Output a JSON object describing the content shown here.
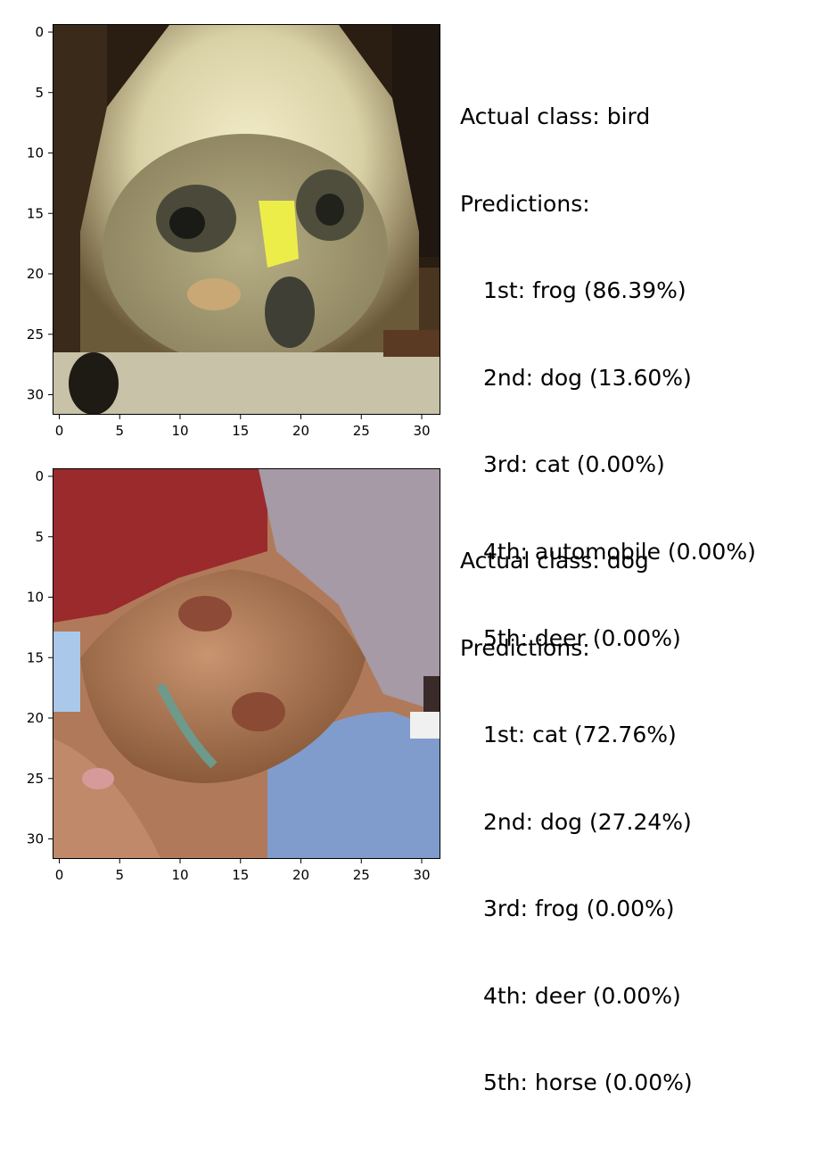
{
  "axis_ticks": [
    0,
    5,
    10,
    15,
    20,
    25,
    30
  ],
  "panels": [
    {
      "actual_label": "Actual class: bird",
      "predictions_header": "Predictions:",
      "predictions": [
        "1st: frog (86.39%)",
        "2nd: dog (13.60%)",
        "3rd: cat (0.00%)",
        "4th: automobile (0.00%)",
        "5th: deer (0.00%)"
      ]
    },
    {
      "actual_label": "Actual class: dog",
      "predictions_header": "Predictions:",
      "predictions": [
        "1st: cat (72.76%)",
        "2nd: dog (27.24%)",
        "3rd: frog (0.00%)",
        "4th: deer (0.00%)",
        "5th: horse (0.00%)"
      ]
    }
  ]
}
